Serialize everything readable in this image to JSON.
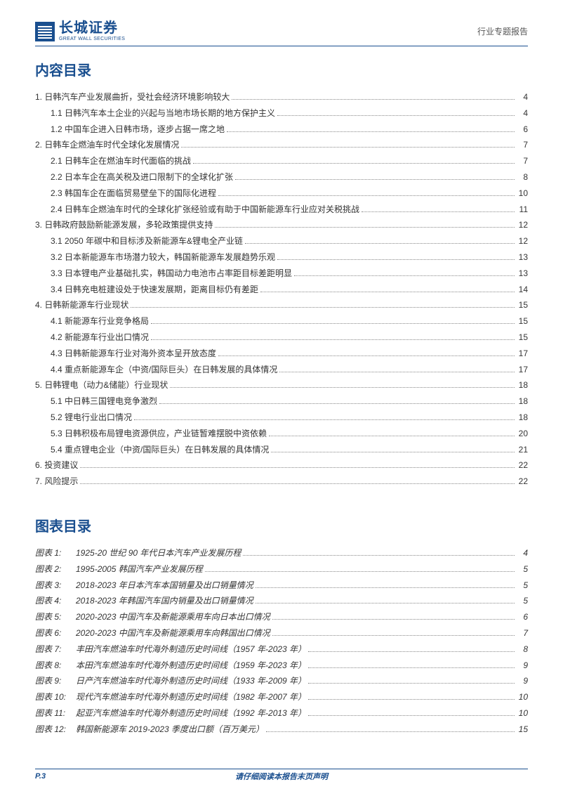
{
  "header": {
    "logo_cn": "长城证券",
    "logo_en": "GREAT WALL SECURITIES",
    "report_type": "行业专题报告"
  },
  "toc_title": "内容目录",
  "toc": [
    {
      "level": 1,
      "num": "1.",
      "label": "日韩汽车产业发展曲折，受社会经济环境影响较大",
      "page": "4"
    },
    {
      "level": 2,
      "num": "1.1",
      "label": "日韩汽车本土企业的兴起与当地市场长期的地方保护主义",
      "page": "4"
    },
    {
      "level": 2,
      "num": "1.2",
      "label": "中国车企进入日韩市场，逐步占据一席之地",
      "page": "6"
    },
    {
      "level": 1,
      "num": "2.",
      "label": "日韩车企燃油车时代全球化发展情况",
      "page": "7"
    },
    {
      "level": 2,
      "num": "2.1",
      "label": "日韩车企在燃油车时代面临的挑战",
      "page": "7"
    },
    {
      "level": 2,
      "num": "2.2",
      "label": "日本车企在高关税及进口限制下的全球化扩张",
      "page": "8"
    },
    {
      "level": 2,
      "num": "2.3",
      "label": "韩国车企在面临贸易壁垒下的国际化进程",
      "page": "10"
    },
    {
      "level": 2,
      "num": "2.4",
      "label": "日韩车企燃油车时代的全球化扩张经验或有助于中国新能源车行业应对关税挑战",
      "page": "11"
    },
    {
      "level": 1,
      "num": "3.",
      "label": "日韩政府鼓励新能源发展，多轮政策提供支持",
      "page": "12"
    },
    {
      "level": 2,
      "num": "3.1",
      "label": "2050 年碳中和目标涉及新能源车&锂电全产业链",
      "page": "12"
    },
    {
      "level": 2,
      "num": "3.2",
      "label": "日本新能源车市场潜力较大，韩国新能源车发展趋势乐观",
      "page": "13"
    },
    {
      "level": 2,
      "num": "3.3",
      "label": "日本锂电产业基础扎实，韩国动力电池市占率距目标差距明显",
      "page": "13"
    },
    {
      "level": 2,
      "num": "3.4",
      "label": "日韩充电桩建设处于快速发展期，距离目标仍有差距",
      "page": "14"
    },
    {
      "level": 1,
      "num": "4.",
      "label": "日韩新能源车行业现状",
      "page": "15"
    },
    {
      "level": 2,
      "num": "4.1",
      "label": "新能源车行业竞争格局",
      "page": "15"
    },
    {
      "level": 2,
      "num": "4.2",
      "label": "新能源车行业出口情况",
      "page": "15"
    },
    {
      "level": 2,
      "num": "4.3",
      "label": "日韩新能源车行业对海外资本呈开放态度",
      "page": "17"
    },
    {
      "level": 2,
      "num": "4.4",
      "label": "重点新能源车企（中资/国际巨头）在日韩发展的具体情况",
      "page": "17"
    },
    {
      "level": 1,
      "num": "5.",
      "label": "日韩锂电（动力&储能）行业现状",
      "page": "18"
    },
    {
      "level": 2,
      "num": "5.1",
      "label": "中日韩三国锂电竞争激烈",
      "page": "18"
    },
    {
      "level": 2,
      "num": "5.2",
      "label": "锂电行业出口情况",
      "page": "18"
    },
    {
      "level": 2,
      "num": "5.3",
      "label": "日韩积极布局锂电资源供应，产业链暂难摆脱中资依赖",
      "page": "20"
    },
    {
      "level": 2,
      "num": "5.4",
      "label": "重点锂电企业（中资/国际巨头）在日韩发展的具体情况",
      "page": "21"
    },
    {
      "level": 1,
      "num": "6.",
      "label": "投资建议",
      "page": "22"
    },
    {
      "level": 1,
      "num": "7.",
      "label": "风险提示",
      "page": "22"
    }
  ],
  "fig_title": "图表目录",
  "figures": [
    {
      "prefix": "图表 1:",
      "label": "1925-20 世纪 90 年代日本汽车产业发展历程",
      "page": "4"
    },
    {
      "prefix": "图表 2:",
      "label": "1995-2005 韩国汽车产业发展历程",
      "page": "5"
    },
    {
      "prefix": "图表 3:",
      "label": "2018-2023 年日本汽车本国销量及出口销量情况",
      "page": "5"
    },
    {
      "prefix": "图表 4:",
      "label": "2018-2023 年韩国汽车国内销量及出口销量情况",
      "page": "5"
    },
    {
      "prefix": "图表 5:",
      "label": "2020-2023 中国汽车及新能源乘用车向日本出口情况",
      "page": "6"
    },
    {
      "prefix": "图表 6:",
      "label": "2020-2023 中国汽车及新能源乘用车向韩国出口情况",
      "page": "7"
    },
    {
      "prefix": "图表 7:",
      "label": "丰田汽车燃油车时代海外制造历史时间线（1957 年-2023 年）",
      "page": "8"
    },
    {
      "prefix": "图表 8:",
      "label": "本田汽车燃油车时代海外制造历史时间线（1959 年-2023 年）",
      "page": "9"
    },
    {
      "prefix": "图表 9:",
      "label": "日产汽车燃油车时代海外制造历史时间线（1933 年-2009 年）",
      "page": "9"
    },
    {
      "prefix": "图表 10:",
      "label": " 现代汽车燃油车时代海外制造历史时间线（1982 年-2007 年）",
      "page": "10"
    },
    {
      "prefix": "图表 11:",
      "label": " 起亚汽车燃油车时代海外制造历史时间线（1992 年-2013 年）",
      "page": "10"
    },
    {
      "prefix": "图表 12:",
      "label": " 韩国新能源车 2019-2023 季度出口额（百万美元）",
      "page": "15"
    }
  ],
  "footer": {
    "page_number": "P.3",
    "disclaimer": "请仔细阅读本报告末页声明"
  },
  "colors": {
    "brand": "#1a4f8f",
    "text": "#333333",
    "muted": "#555555",
    "background": "#ffffff"
  }
}
